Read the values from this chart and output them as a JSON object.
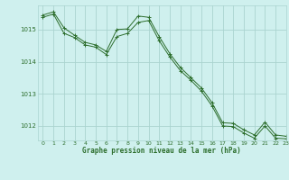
{
  "title": "Graphe pression niveau de la mer (hPa)",
  "background_color": "#cff0ee",
  "grid_color": "#aad4d0",
  "line_color": "#2d6e2d",
  "xlim": [
    -0.5,
    23
  ],
  "ylim": [
    1011.55,
    1015.75
  ],
  "xticks": [
    0,
    1,
    2,
    3,
    4,
    5,
    6,
    7,
    8,
    9,
    10,
    11,
    12,
    13,
    14,
    15,
    16,
    17,
    18,
    19,
    20,
    21,
    22,
    23
  ],
  "yticks": [
    1012,
    1013,
    1014,
    1015
  ],
  "series1_x": [
    0,
    1,
    2,
    3,
    4,
    5,
    6,
    7,
    8,
    9,
    10,
    11,
    12,
    13,
    14,
    15,
    16,
    17,
    18,
    19,
    20,
    21,
    22,
    23
  ],
  "series1_y": [
    1015.45,
    1015.55,
    1015.05,
    1014.82,
    1014.6,
    1014.52,
    1014.32,
    1015.0,
    1015.02,
    1015.42,
    1015.38,
    1014.78,
    1014.25,
    1013.82,
    1013.5,
    1013.18,
    1012.72,
    1012.1,
    1012.08,
    1011.88,
    1011.72,
    1012.12,
    1011.72,
    1011.68
  ],
  "series2_x": [
    0,
    1,
    2,
    3,
    4,
    5,
    6,
    7,
    8,
    9,
    10,
    11,
    12,
    13,
    14,
    15,
    16,
    17,
    18,
    19,
    20,
    21,
    22,
    23
  ],
  "series2_y": [
    1015.38,
    1015.48,
    1014.88,
    1014.75,
    1014.52,
    1014.45,
    1014.22,
    1014.78,
    1014.88,
    1015.22,
    1015.28,
    1014.65,
    1014.15,
    1013.72,
    1013.42,
    1013.08,
    1012.62,
    1012.0,
    1011.98,
    1011.78,
    1011.62,
    1012.0,
    1011.62,
    1011.6
  ]
}
